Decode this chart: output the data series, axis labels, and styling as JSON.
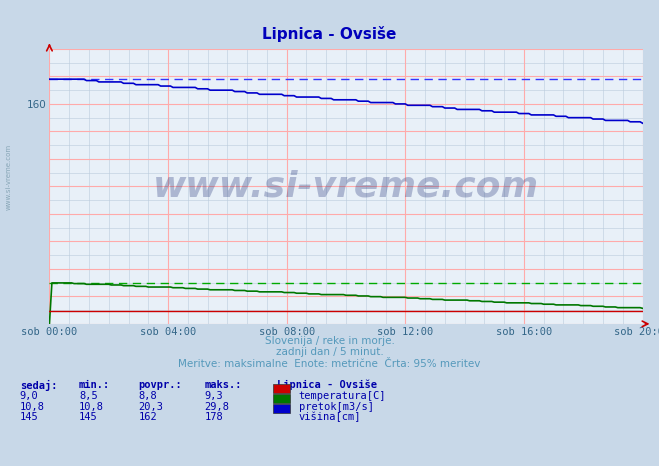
{
  "title": "Lipnica - Ovsiše",
  "outer_bg": "#c8d8e8",
  "plot_bg": "#e8f0f8",
  "border_color": "#aabbcc",
  "title_color": "#0000bb",
  "grid_major_color": "#ffaaaa",
  "grid_minor_color": "#bbccdd",
  "x_labels": [
    "sob 00:00",
    "sob 04:00",
    "sob 08:00",
    "sob 12:00",
    "sob 16:00",
    "sob 20:00"
  ],
  "x_ticks_pos": [
    0,
    48,
    96,
    144,
    192,
    240
  ],
  "n_points": 241,
  "ylim": [
    0,
    200
  ],
  "ytick_val": 160,
  "visina_start": 178,
  "visina_end": 145,
  "visina_max_line": 178,
  "pretok_start": 29.8,
  "pretok_end": 10.8,
  "pretok_max_line": 29.8,
  "temp_value": 9.0,
  "color_visina": "#0000cc",
  "color_pretok": "#007700",
  "color_temp": "#cc0000",
  "color_visina_dash": "#3333ff",
  "color_pretok_dash": "#00aa00",
  "watermark_text": "www.si-vreme.com",
  "watermark_color": "#223377",
  "watermark_alpha": 0.3,
  "left_label": "www.si-vreme.com",
  "left_label_color": "#7799aa",
  "subtitle1": "Slovenija / reke in morje.",
  "subtitle2": "zadnji dan / 5 minut.",
  "subtitle3": "Meritve: maksimalne  Enote: metrične  Črta: 95% meritev",
  "subtitle_color": "#5599bb",
  "table_header": [
    "sedaj:",
    "min.:",
    "povpr.:",
    "maks.:"
  ],
  "table_col_label": "Lipnica - Ovsiše",
  "table_data": [
    [
      9.0,
      8.5,
      8.8,
      9.3
    ],
    [
      10.8,
      10.8,
      20.3,
      29.8
    ],
    [
      145,
      145,
      162,
      178
    ]
  ],
  "table_series": [
    "temperatura[C]",
    "pretok[m3/s]",
    "višina[cm]"
  ],
  "table_colors": [
    "#cc0000",
    "#007700",
    "#0000cc"
  ],
  "table_text_color": "#0000aa",
  "arrow_color": "#cc0000",
  "tick_color": "#336688",
  "tick_fontsize": 7.5
}
